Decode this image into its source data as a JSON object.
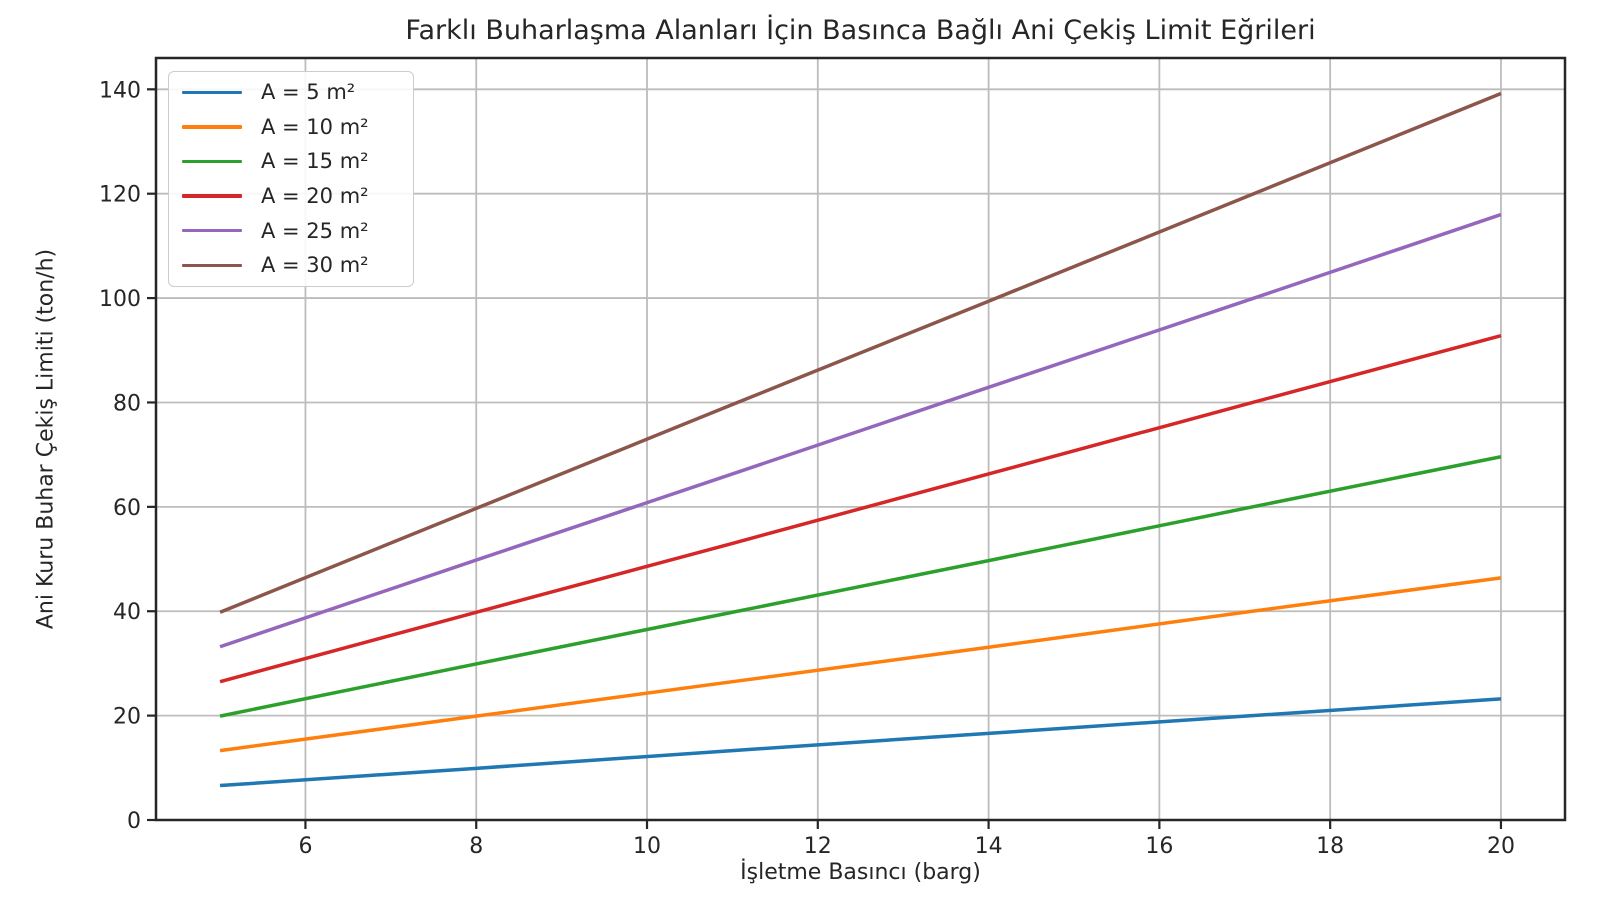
{
  "chart_data": {
    "type": "line",
    "title": "Farklı Buharlaşma Alanları İçin Basınca Bağlı Ani Çekiş Limit Eğrileri",
    "xlabel": "İşletme Basıncı (barg)",
    "ylabel": "Ani Kuru Buhar Çekiş Limiti (ton/h)",
    "x": [
      5,
      8,
      11,
      14,
      17,
      20
    ],
    "series": [
      {
        "name": "A = 5 m²",
        "color": "#1f77b4",
        "values": [
          6.6,
          9.9,
          13.3,
          16.6,
          19.9,
          23.2
        ]
      },
      {
        "name": "A = 10 m²",
        "color": "#ff7f0e",
        "values": [
          13.3,
          19.9,
          26.5,
          33.1,
          39.8,
          46.4
        ]
      },
      {
        "name": "A = 15 m²",
        "color": "#2ca02c",
        "values": [
          19.9,
          29.9,
          39.8,
          49.7,
          59.7,
          69.6
        ]
      },
      {
        "name": "A = 20 m²",
        "color": "#d62728",
        "values": [
          26.5,
          39.8,
          53.0,
          66.3,
          79.6,
          92.8
        ]
      },
      {
        "name": "A = 25 m²",
        "color": "#9467bd",
        "values": [
          33.2,
          49.8,
          66.3,
          82.9,
          99.4,
          116.0
        ]
      },
      {
        "name": "A = 30 m²",
        "color": "#8c564b",
        "values": [
          39.8,
          59.7,
          79.6,
          99.4,
          119.3,
          139.2
        ]
      }
    ],
    "xlim": [
      4.25,
      20.75
    ],
    "ylim": [
      0,
      146
    ],
    "xticks": [
      6,
      8,
      10,
      12,
      14,
      16,
      18,
      20
    ],
    "yticks": [
      0,
      20,
      40,
      60,
      80,
      100,
      120,
      140
    ],
    "grid": true,
    "legend_position": "upper-left",
    "grid_color": "#bdbdbd",
    "spine_color": "#262626",
    "tick_color": "#262626",
    "background_color": "#ffffff"
  }
}
